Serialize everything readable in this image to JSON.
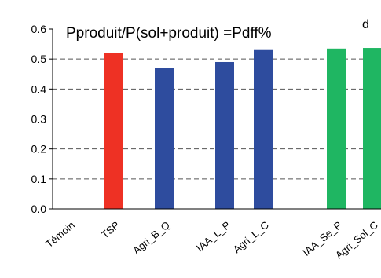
{
  "chart_data": {
    "type": "bar",
    "title": "Pproduit/P(sol+produit) =Pdff%",
    "panel_letter": "d",
    "categories": [
      "Témoin",
      "TSP",
      "Agri_B_Q",
      "IAA_L_P",
      "Agri_L_C",
      "IAA_Se_P",
      "Agri_Sol_C"
    ],
    "values": [
      null,
      0.52,
      0.47,
      0.49,
      0.53,
      0.535,
      0.537
    ],
    "bar_colors": [
      "#ffffff",
      "#ee3124",
      "#2e4c9e",
      "#2e4c9e",
      "#2e4c9e",
      "#1fb662",
      "#1fb662"
    ],
    "ylim": [
      0.0,
      0.6
    ],
    "yticks": [
      "0.0",
      "0.1",
      "0.2",
      "0.3",
      "0.4",
      "0.5",
      "0.6"
    ],
    "gridlines": [
      0.1,
      0.2,
      0.3,
      0.4,
      0.5
    ],
    "grid": "dashed horizontal",
    "xlabel": "",
    "ylabel": ""
  }
}
